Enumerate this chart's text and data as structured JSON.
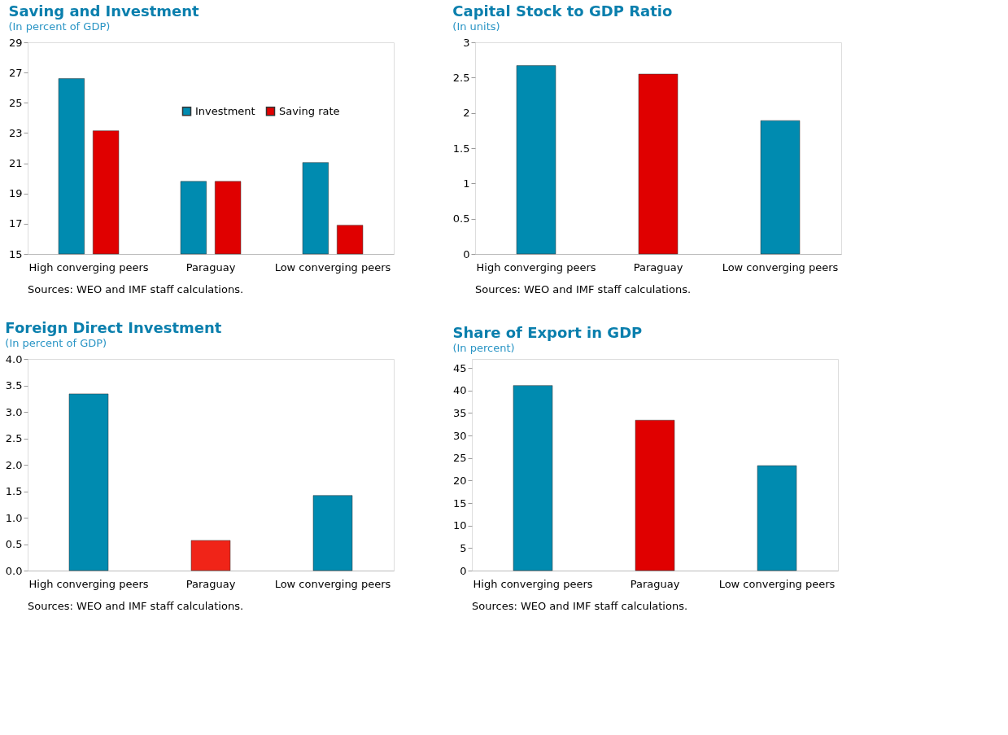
{
  "chart_data": [
    {
      "type": "bar",
      "title": "Saving and Investment",
      "subtitle": "(In percent of GDP)",
      "categories": [
        "High converging peers",
        "Paraguay",
        "Low converging peers"
      ],
      "series": [
        {
          "name": "Investment",
          "color": "#008bb0",
          "values": [
            26.6,
            19.8,
            21.05
          ]
        },
        {
          "name": "Saving rate",
          "color": "#e00000",
          "values": [
            23.15,
            19.8,
            16.9
          ]
        }
      ],
      "ylim": [
        15,
        29
      ],
      "yticks": [
        15,
        17,
        19,
        21,
        23,
        25,
        27,
        29
      ],
      "grid": false,
      "legend": "top right",
      "annotations": [
        "Sources: WEO and IMF staff calculations."
      ]
    },
    {
      "type": "bar",
      "title": "Capital Stock to GDP Ratio",
      "subtitle": "(In units)",
      "categories": [
        "High converging peers",
        "Paraguay",
        "Low converging peers"
      ],
      "values": [
        2.67,
        2.55,
        1.89
      ],
      "colors": [
        "#008bb0",
        "#e00000",
        "#008bb0"
      ],
      "ylim": [
        0,
        3
      ],
      "yticks": [
        0,
        0.5,
        1,
        1.5,
        2,
        2.5,
        3
      ],
      "grid": false,
      "annotations": [
        "Sources: WEO and IMF staff calculations."
      ]
    },
    {
      "type": "bar",
      "title": "Foreign Direct Investment",
      "subtitle": "(In percent of GDP)",
      "categories": [
        "High converging peers",
        "Paraguay",
        "Low converging peers"
      ],
      "values": [
        3.34,
        0.57,
        1.42
      ],
      "colors": [
        "#008bb0",
        "#f02418",
        "#008bb0"
      ],
      "ylim": [
        0,
        4
      ],
      "yticks": [
        {
          "value": 0,
          "label": "0.0"
        },
        0.5,
        {
          "value": 1,
          "label": "1.0"
        },
        1.5,
        {
          "value": 2,
          "label": "2.0"
        },
        2.5,
        {
          "value": 3,
          "label": "3.0"
        },
        3.5,
        {
          "value": 4,
          "label": "4.0"
        }
      ],
      "grid": false,
      "annotations": [
        "Sources: WEO and IMF staff calculations."
      ]
    },
    {
      "type": "bar",
      "title": "Share of Export in GDP",
      "subtitle": "(In percent)",
      "categories": [
        "High converging peers",
        "Paraguay",
        "Low converging peers"
      ],
      "values": [
        41.1,
        33.4,
        23.3
      ],
      "colors": [
        "#008bb0",
        "#e00000",
        "#008bb0"
      ],
      "ylim": [
        0,
        47
      ],
      "yticks": [
        0,
        5,
        10,
        15,
        20,
        25,
        30,
        35,
        40,
        45
      ],
      "grid": false,
      "annotations": [
        "Sources: WEO and IMF staff calculations."
      ]
    }
  ]
}
